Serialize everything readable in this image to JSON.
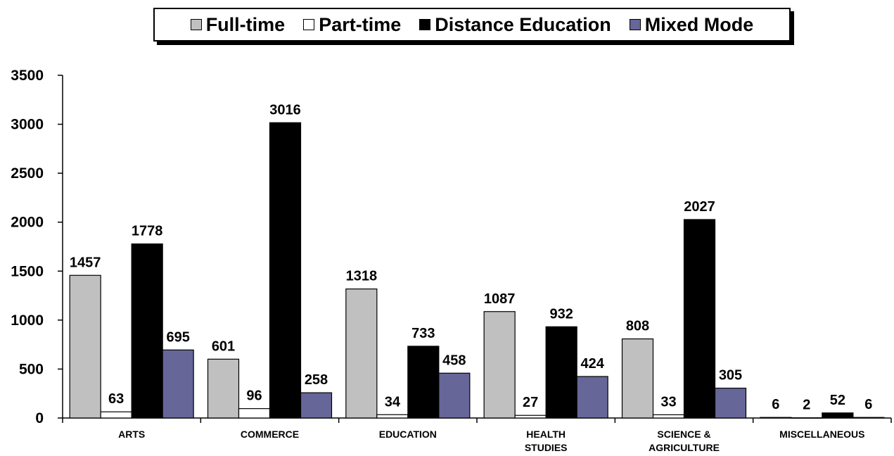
{
  "chart_data": {
    "type": "bar",
    "categories": [
      "ARTS",
      "COMMERCE",
      "EDUCATION",
      "HEALTH STUDIES",
      "SCIENCE & AGRICULTURE",
      "MISCELLANEOUS"
    ],
    "category_lines": [
      [
        "ARTS"
      ],
      [
        "COMMERCE"
      ],
      [
        "EDUCATION"
      ],
      [
        "HEALTH",
        "STUDIES"
      ],
      [
        "SCIENCE &",
        "AGRICULTURE"
      ],
      [
        "MISCELLANEOUS"
      ]
    ],
    "series": [
      {
        "name": "Full-time",
        "color": "#c0c0c0",
        "values": [
          1457,
          601,
          1318,
          1087,
          808,
          6
        ]
      },
      {
        "name": "Part-time",
        "color": "#ffffff",
        "values": [
          63,
          96,
          34,
          27,
          33,
          2
        ]
      },
      {
        "name": "Distance Education",
        "color": "#000000",
        "values": [
          1778,
          3016,
          733,
          932,
          2027,
          52
        ]
      },
      {
        "name": "Mixed Mode",
        "color": "#666699",
        "values": [
          695,
          258,
          458,
          424,
          305,
          6
        ]
      }
    ],
    "ylim": [
      0,
      3500
    ],
    "yticks": [
      "0",
      "500",
      "1000",
      "1500",
      "2000",
      "2500",
      "3000",
      "3500"
    ],
    "legend_position": "top-center",
    "grid": false
  }
}
